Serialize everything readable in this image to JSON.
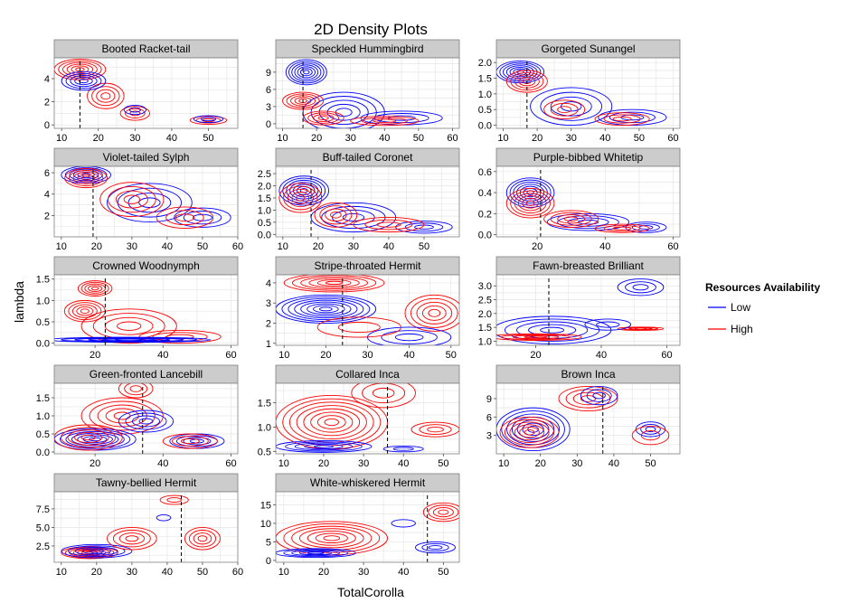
{
  "title": "2D Density Plots",
  "xlabel": "TotalCorolla",
  "ylabel": "lambda",
  "legend": {
    "title": "Resources Availability",
    "items": [
      {
        "label": "Low",
        "color": "#0000ff"
      },
      {
        "label": "High",
        "color": "#ff0000"
      }
    ]
  },
  "colors": {
    "low": "#0000ff",
    "high": "#ff0000",
    "strip": "#cccccc",
    "dashed": "#000000"
  },
  "chart_data": {
    "type": "contour",
    "grid": true,
    "legend_position": "right",
    "panels": [
      {
        "name": "Booted Racket-tail",
        "xlim": [
          8,
          58
        ],
        "ylim": [
          -0.3,
          5.8
        ],
        "xticks": [
          10,
          20,
          30,
          40,
          50
        ],
        "yticks": [
          0,
          2,
          4
        ],
        "vline": 15,
        "blobs": [
          {
            "s": "high",
            "cx": 15,
            "cy": 4.8,
            "rx": 7,
            "ry": 0.9,
            "n": 6
          },
          {
            "s": "high",
            "cx": 22,
            "cy": 2.5,
            "rx": 5,
            "ry": 1.1,
            "n": 4
          },
          {
            "s": "high",
            "cx": 30,
            "cy": 1.0,
            "rx": 4,
            "ry": 0.6,
            "n": 3
          },
          {
            "s": "high",
            "cx": 50,
            "cy": 0.4,
            "rx": 5,
            "ry": 0.35,
            "n": 3
          },
          {
            "s": "low",
            "cx": 16,
            "cy": 3.8,
            "rx": 6,
            "ry": 0.8,
            "n": 5
          },
          {
            "s": "low",
            "cx": 30,
            "cy": 1.3,
            "rx": 3,
            "ry": 0.4,
            "n": 2
          },
          {
            "s": "low",
            "cx": 50,
            "cy": 0.5,
            "rx": 4,
            "ry": 0.3,
            "n": 2
          }
        ]
      },
      {
        "name": "Speckled Hummingbird",
        "xlim": [
          8,
          62
        ],
        "ylim": [
          -0.8,
          11.5
        ],
        "xticks": [
          10,
          20,
          30,
          40,
          50,
          60
        ],
        "yticks": [
          0,
          3,
          6,
          9
        ],
        "vline": 16,
        "blobs": [
          {
            "s": "low",
            "cx": 17,
            "cy": 9,
            "rx": 6,
            "ry": 2.2,
            "n": 7
          },
          {
            "s": "low",
            "cx": 28,
            "cy": 2,
            "rx": 12,
            "ry": 3.5,
            "n": 5
          },
          {
            "s": "low",
            "cx": 45,
            "cy": 1,
            "rx": 12,
            "ry": 1.2,
            "n": 3
          },
          {
            "s": "high",
            "cx": 16,
            "cy": 4,
            "rx": 6,
            "ry": 1.5,
            "n": 5
          },
          {
            "s": "high",
            "cx": 22,
            "cy": 1,
            "rx": 6,
            "ry": 1.2,
            "n": 4
          },
          {
            "s": "high",
            "cx": 40,
            "cy": 0.5,
            "rx": 10,
            "ry": 0.8,
            "n": 3
          }
        ]
      },
      {
        "name": "Gorgeted Sunangel",
        "xlim": [
          8,
          62
        ],
        "ylim": [
          -0.1,
          2.15
        ],
        "xticks": [
          10,
          20,
          30,
          40,
          50,
          60
        ],
        "yticks": [
          0.0,
          0.5,
          1.0,
          1.5,
          2.0
        ],
        "vline": 17,
        "blobs": [
          {
            "s": "low",
            "cx": 15,
            "cy": 1.7,
            "rx": 7,
            "ry": 0.35,
            "n": 7
          },
          {
            "s": "low",
            "cx": 30,
            "cy": 0.6,
            "rx": 12,
            "ry": 0.6,
            "n": 4
          },
          {
            "s": "low",
            "cx": 48,
            "cy": 0.25,
            "rx": 10,
            "ry": 0.25,
            "n": 3
          },
          {
            "s": "high",
            "cx": 17,
            "cy": 1.4,
            "rx": 6,
            "ry": 0.35,
            "n": 5
          },
          {
            "s": "high",
            "cx": 28,
            "cy": 0.5,
            "rx": 6,
            "ry": 0.3,
            "n": 3
          },
          {
            "s": "high",
            "cx": 45,
            "cy": 0.2,
            "rx": 8,
            "ry": 0.2,
            "n": 3
          }
        ]
      },
      {
        "name": "Violet-tailed Sylph",
        "xlim": [
          8,
          60
        ],
        "ylim": [
          0,
          6.6
        ],
        "xticks": [
          10,
          20,
          30,
          40,
          50,
          60
        ],
        "yticks": [
          2,
          4,
          6
        ],
        "vline": 19,
        "blobs": [
          {
            "s": "low",
            "cx": 17,
            "cy": 5.8,
            "rx": 7,
            "ry": 0.8,
            "n": 6
          },
          {
            "s": "low",
            "cx": 35,
            "cy": 3.2,
            "rx": 12,
            "ry": 1.8,
            "n": 4
          },
          {
            "s": "low",
            "cx": 50,
            "cy": 1.8,
            "rx": 8,
            "ry": 0.9,
            "n": 3
          },
          {
            "s": "high",
            "cx": 17,
            "cy": 5.5,
            "rx": 6,
            "ry": 0.9,
            "n": 5
          },
          {
            "s": "high",
            "cx": 30,
            "cy": 3.5,
            "rx": 9,
            "ry": 1.6,
            "n": 4
          },
          {
            "s": "high",
            "cx": 45,
            "cy": 1.8,
            "rx": 8,
            "ry": 1.0,
            "n": 3
          }
        ]
      },
      {
        "name": "Buff-tailed Coronet",
        "xlim": [
          8,
          60
        ],
        "ylim": [
          -0.1,
          2.8
        ],
        "xticks": [
          10,
          20,
          30,
          40,
          50
        ],
        "yticks": [
          0.0,
          0.5,
          1.0,
          1.5,
          2.0,
          2.5
        ],
        "vline": 18,
        "blobs": [
          {
            "s": "low",
            "cx": 16,
            "cy": 1.8,
            "rx": 7,
            "ry": 0.6,
            "n": 7
          },
          {
            "s": "low",
            "cx": 30,
            "cy": 0.7,
            "rx": 12,
            "ry": 0.6,
            "n": 4
          },
          {
            "s": "low",
            "cx": 50,
            "cy": 0.3,
            "rx": 8,
            "ry": 0.25,
            "n": 3
          },
          {
            "s": "high",
            "cx": 15,
            "cy": 1.5,
            "rx": 6,
            "ry": 0.6,
            "n": 5
          },
          {
            "s": "high",
            "cx": 25,
            "cy": 0.8,
            "rx": 6,
            "ry": 0.5,
            "n": 4
          },
          {
            "s": "high",
            "cx": 40,
            "cy": 0.4,
            "rx": 10,
            "ry": 0.3,
            "n": 3
          }
        ]
      },
      {
        "name": "Purple-bibbed Whitetip",
        "xlim": [
          8,
          62
        ],
        "ylim": [
          -0.02,
          0.65
        ],
        "xticks": [
          20,
          40,
          60
        ],
        "yticks": [
          0.0,
          0.2,
          0.4,
          0.6
        ],
        "vline": 21,
        "blobs": [
          {
            "s": "low",
            "cx": 18,
            "cy": 0.4,
            "rx": 7,
            "ry": 0.14,
            "n": 7
          },
          {
            "s": "low",
            "cx": 35,
            "cy": 0.12,
            "rx": 12,
            "ry": 0.08,
            "n": 4
          },
          {
            "s": "low",
            "cx": 52,
            "cy": 0.07,
            "rx": 6,
            "ry": 0.05,
            "n": 3
          },
          {
            "s": "high",
            "cx": 18,
            "cy": 0.3,
            "rx": 7,
            "ry": 0.14,
            "n": 6
          },
          {
            "s": "high",
            "cx": 30,
            "cy": 0.15,
            "rx": 8,
            "ry": 0.08,
            "n": 4
          },
          {
            "s": "high",
            "cx": 45,
            "cy": 0.06,
            "rx": 8,
            "ry": 0.04,
            "n": 3
          }
        ]
      },
      {
        "name": "Crowned Woodnymph",
        "xlim": [
          8,
          62
        ],
        "ylim": [
          -0.05,
          1.6
        ],
        "xticks": [
          20,
          40,
          60
        ],
        "yticks": [
          0.0,
          0.5,
          1.0,
          1.5
        ],
        "vline": 23,
        "blobs": [
          {
            "s": "high",
            "cx": 20,
            "cy": 1.28,
            "rx": 5,
            "ry": 0.18,
            "n": 5
          },
          {
            "s": "high",
            "cx": 17,
            "cy": 0.75,
            "rx": 6,
            "ry": 0.25,
            "n": 5
          },
          {
            "s": "high",
            "cx": 30,
            "cy": 0.4,
            "rx": 14,
            "ry": 0.4,
            "n": 4
          },
          {
            "s": "high",
            "cx": 45,
            "cy": 0.15,
            "rx": 12,
            "ry": 0.15,
            "n": 3
          },
          {
            "s": "low",
            "cx": 30,
            "cy": 0.08,
            "rx": 24,
            "ry": 0.06,
            "n": 6
          }
        ]
      },
      {
        "name": "Stripe-throated Hermit",
        "xlim": [
          8,
          52
        ],
        "ylim": [
          0.9,
          4.4
        ],
        "xticks": [
          10,
          20,
          30,
          40,
          50
        ],
        "yticks": [
          1,
          2,
          3,
          4
        ],
        "vline": 24,
        "blobs": [
          {
            "s": "high",
            "cx": 22,
            "cy": 4.0,
            "rx": 12,
            "ry": 0.45,
            "n": 6
          },
          {
            "s": "low",
            "cx": 20,
            "cy": 2.7,
            "rx": 12,
            "ry": 0.7,
            "n": 8
          },
          {
            "s": "high",
            "cx": 46,
            "cy": 2.5,
            "rx": 7,
            "ry": 0.9,
            "n": 5
          },
          {
            "s": "low",
            "cx": 40,
            "cy": 1.3,
            "rx": 10,
            "ry": 0.5,
            "n": 3
          },
          {
            "s": "high",
            "cx": 28,
            "cy": 1.8,
            "rx": 10,
            "ry": 0.5,
            "n": 2
          }
        ]
      },
      {
        "name": "Fawn-breasted Brilliant",
        "xlim": [
          8,
          64
        ],
        "ylim": [
          0.85,
          3.4
        ],
        "xticks": [
          20,
          40,
          60
        ],
        "yticks": [
          1.0,
          1.5,
          2.0,
          2.5,
          3.0
        ],
        "vline": 24,
        "blobs": [
          {
            "s": "low",
            "cx": 52,
            "cy": 2.95,
            "rx": 7,
            "ry": 0.3,
            "n": 3
          },
          {
            "s": "low",
            "cx": 25,
            "cy": 1.4,
            "rx": 18,
            "ry": 0.5,
            "n": 5
          },
          {
            "s": "high",
            "cx": 20,
            "cy": 1.15,
            "rx": 14,
            "ry": 0.12,
            "n": 4
          },
          {
            "s": "high",
            "cx": 52,
            "cy": 1.45,
            "rx": 7,
            "ry": 0.06,
            "n": 4
          },
          {
            "s": "low",
            "cx": 42,
            "cy": 1.6,
            "rx": 7,
            "ry": 0.2,
            "n": 2
          }
        ]
      },
      {
        "name": "Green-fronted Lancebill",
        "xlim": [
          8,
          62
        ],
        "ylim": [
          -0.05,
          1.9
        ],
        "xticks": [
          20,
          40,
          60
        ],
        "yticks": [
          0.0,
          0.5,
          1.0,
          1.5
        ],
        "vline": 34,
        "blobs": [
          {
            "s": "high",
            "cx": 32,
            "cy": 1.75,
            "rx": 5,
            "ry": 0.25,
            "n": 3
          },
          {
            "s": "high",
            "cx": 28,
            "cy": 1.0,
            "rx": 12,
            "ry": 0.5,
            "n": 5
          },
          {
            "s": "low",
            "cx": 20,
            "cy": 0.35,
            "rx": 12,
            "ry": 0.3,
            "n": 7
          },
          {
            "s": "low",
            "cx": 35,
            "cy": 0.85,
            "rx": 8,
            "ry": 0.3,
            "n": 4
          },
          {
            "s": "low",
            "cx": 50,
            "cy": 0.3,
            "rx": 8,
            "ry": 0.2,
            "n": 4
          },
          {
            "s": "high",
            "cx": 18,
            "cy": 0.4,
            "rx": 10,
            "ry": 0.35,
            "n": 5
          },
          {
            "s": "high",
            "cx": 48,
            "cy": 0.3,
            "rx": 8,
            "ry": 0.2,
            "n": 3
          }
        ]
      },
      {
        "name": "Collared Inca",
        "xlim": [
          8,
          54
        ],
        "ylim": [
          0.45,
          1.9
        ],
        "xticks": [
          10,
          20,
          30,
          40,
          50
        ],
        "yticks": [
          0.5,
          1.0,
          1.5
        ],
        "vline": 36,
        "blobs": [
          {
            "s": "high",
            "cx": 22,
            "cy": 1.1,
            "rx": 14,
            "ry": 0.55,
            "n": 8
          },
          {
            "s": "high",
            "cx": 35,
            "cy": 1.7,
            "rx": 8,
            "ry": 0.3,
            "n": 3
          },
          {
            "s": "high",
            "cx": 48,
            "cy": 0.95,
            "rx": 6,
            "ry": 0.15,
            "n": 3
          },
          {
            "s": "low",
            "cx": 20,
            "cy": 0.6,
            "rx": 12,
            "ry": 0.12,
            "n": 5
          },
          {
            "s": "low",
            "cx": 40,
            "cy": 0.55,
            "rx": 5,
            "ry": 0.06,
            "n": 2
          }
        ]
      },
      {
        "name": "Brown Inca",
        "xlim": [
          8,
          58
        ],
        "ylim": [
          0,
          11.5
        ],
        "xticks": [
          10,
          20,
          30,
          40,
          50
        ],
        "yticks": [
          3,
          6,
          9
        ],
        "vline": 37,
        "blobs": [
          {
            "s": "low",
            "cx": 18,
            "cy": 4,
            "rx": 10,
            "ry": 3.5,
            "n": 7
          },
          {
            "s": "high",
            "cx": 17,
            "cy": 3.5,
            "rx": 8,
            "ry": 2.5,
            "n": 6
          },
          {
            "s": "high",
            "cx": 33,
            "cy": 9,
            "rx": 8,
            "ry": 2,
            "n": 4
          },
          {
            "s": "low",
            "cx": 36,
            "cy": 9.5,
            "rx": 5,
            "ry": 1.5,
            "n": 3
          },
          {
            "s": "low",
            "cx": 50,
            "cy": 4,
            "rx": 4,
            "ry": 1.2,
            "n": 3
          },
          {
            "s": "high",
            "cx": 50,
            "cy": 3,
            "rx": 5,
            "ry": 1.5,
            "n": 2
          }
        ]
      },
      {
        "name": "Tawny-bellied Hermit",
        "xlim": [
          8,
          60
        ],
        "ylim": [
          0.3,
          9.8
        ],
        "xticks": [
          10,
          20,
          30,
          40,
          50,
          60
        ],
        "yticks": [
          2.5,
          5.0,
          7.5
        ],
        "vline": 44,
        "blobs": [
          {
            "s": "high",
            "cx": 18,
            "cy": 1.6,
            "rx": 8,
            "ry": 0.8,
            "n": 7
          },
          {
            "s": "low",
            "cx": 20,
            "cy": 1.8,
            "rx": 10,
            "ry": 0.9,
            "n": 5
          },
          {
            "s": "high",
            "cx": 30,
            "cy": 3.5,
            "rx": 7,
            "ry": 1.5,
            "n": 4
          },
          {
            "s": "high",
            "cx": 42,
            "cy": 8.7,
            "rx": 4,
            "ry": 0.6,
            "n": 2
          },
          {
            "s": "low",
            "cx": 39,
            "cy": 6.3,
            "rx": 2,
            "ry": 0.4,
            "n": 1
          },
          {
            "s": "high",
            "cx": 50,
            "cy": 3.5,
            "rx": 5,
            "ry": 1.5,
            "n": 4
          }
        ]
      },
      {
        "name": "White-whiskered Hermit",
        "xlim": [
          8,
          54
        ],
        "ylim": [
          -0.5,
          18.5
        ],
        "xticks": [
          10,
          20,
          30,
          40,
          50
        ],
        "yticks": [
          0,
          5,
          10,
          15
        ],
        "vline": 46,
        "blobs": [
          {
            "s": "high",
            "cx": 22,
            "cy": 6,
            "rx": 14,
            "ry": 4.5,
            "n": 7
          },
          {
            "s": "low",
            "cx": 18,
            "cy": 2,
            "rx": 10,
            "ry": 1.2,
            "n": 5
          },
          {
            "s": "high",
            "cx": 50,
            "cy": 13,
            "rx": 5,
            "ry": 2.5,
            "n": 4
          },
          {
            "s": "low",
            "cx": 48,
            "cy": 3.5,
            "rx": 5,
            "ry": 1.5,
            "n": 3
          },
          {
            "s": "low",
            "cx": 40,
            "cy": 10,
            "rx": 3,
            "ry": 1,
            "n": 1
          }
        ]
      }
    ]
  }
}
